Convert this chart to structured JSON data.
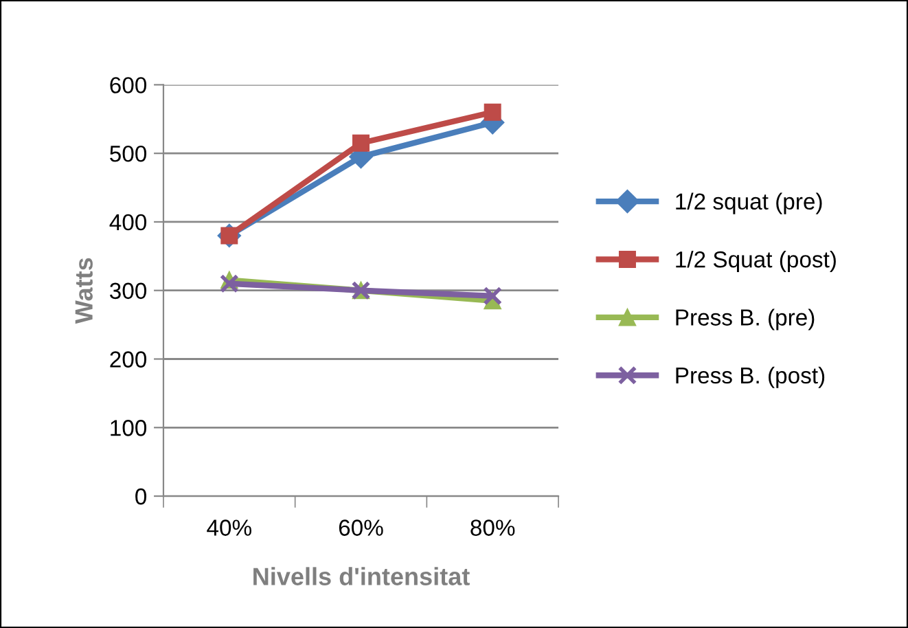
{
  "chart_data": {
    "type": "line",
    "xlabel": "Nivells d'intensitat",
    "ylabel": "Watts",
    "categories": [
      "40%",
      "60%",
      "80%"
    ],
    "series": [
      {
        "name": "1/2 squat (pre)",
        "color": "#4a7ebb",
        "marker": "diamond",
        "values": [
          380,
          495,
          545
        ]
      },
      {
        "name": "1/2 Squat (post)",
        "color": "#be4b48",
        "marker": "square",
        "values": [
          380,
          515,
          560
        ]
      },
      {
        "name": "Press B. (pre)",
        "color": "#98b954",
        "marker": "triangle",
        "values": [
          315,
          300,
          285
        ]
      },
      {
        "name": "Press B. (post)",
        "color": "#7d60a0",
        "marker": "cross",
        "values": [
          310,
          300,
          292
        ]
      }
    ],
    "ylim": [
      0,
      600
    ],
    "yticks": [
      0,
      100,
      200,
      300,
      400,
      500,
      600
    ],
    "grid": "y",
    "legend": "right"
  }
}
